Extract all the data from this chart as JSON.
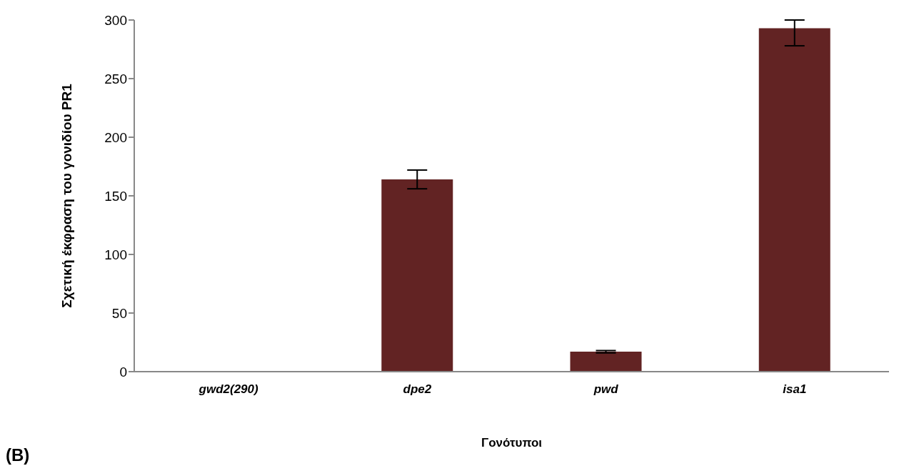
{
  "chart_data": {
    "type": "bar",
    "xlabel": "Γονότυποι",
    "ylabel": "Σχετική έκφραση του γονιδίου PR1",
    "categories": [
      "gwd2(290)",
      "dpe2",
      "pwd",
      "isa1"
    ],
    "values": [
      0.5,
      164,
      17,
      293
    ],
    "errors": [
      null,
      8,
      1,
      [
        278,
        300
      ]
    ],
    "color": "#622323",
    "ylim": [
      0,
      300
    ],
    "yticks": [
      0,
      50,
      100,
      150,
      200,
      250,
      300
    ],
    "grid": false,
    "legend": false,
    "annotations": [
      "(B)"
    ]
  }
}
